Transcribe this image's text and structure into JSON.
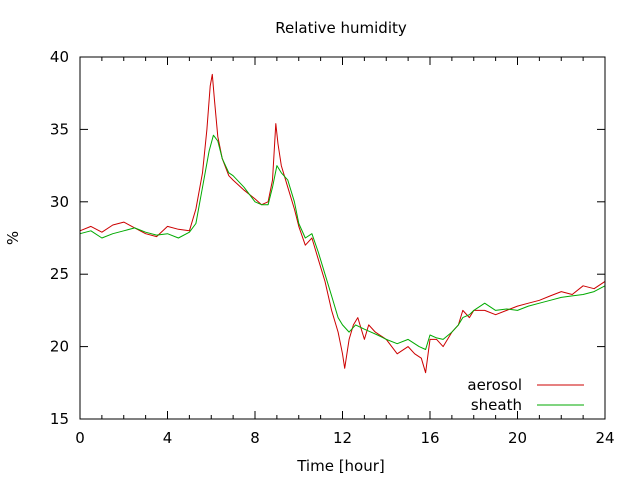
{
  "chart_data": {
    "type": "line",
    "title": "Relative humidity",
    "xlabel": "Time [hour]",
    "ylabel": "%",
    "xlim": [
      0,
      24
    ],
    "ylim": [
      15,
      40
    ],
    "xticks": [
      0,
      4,
      8,
      12,
      16,
      20,
      24
    ],
    "yticks": [
      15,
      20,
      25,
      30,
      35,
      40
    ],
    "xtick_labels": [
      "0",
      "4",
      "8",
      "12",
      "16",
      "20",
      "24"
    ],
    "ytick_labels": [
      "15",
      "20",
      "25",
      "30",
      "35",
      "40"
    ],
    "grid": false,
    "legend_position": "bottom-right",
    "series": [
      {
        "name": "aerosol",
        "color": "#cc0000",
        "x": [
          0,
          0.5,
          1,
          1.5,
          2,
          2.5,
          3,
          3.5,
          4,
          4.5,
          5,
          5.3,
          5.6,
          5.8,
          5.95,
          6.05,
          6.15,
          6.3,
          6.5,
          6.8,
          7,
          7.5,
          8,
          8.3,
          8.6,
          8.8,
          8.95,
          9.05,
          9.2,
          9.5,
          9.8,
          10,
          10.3,
          10.6,
          10.9,
          11.2,
          11.5,
          11.8,
          12,
          12.1,
          12.3,
          12.5,
          12.7,
          12.8,
          13,
          13.2,
          13.5,
          14,
          14.5,
          15,
          15.3,
          15.6,
          15.8,
          16,
          16.3,
          16.6,
          17,
          17.3,
          17.5,
          17.8,
          18,
          18.5,
          19,
          19.5,
          20,
          20.5,
          21,
          21.5,
          22,
          22.5,
          23,
          23.5,
          24
        ],
        "y": [
          28.0,
          28.3,
          27.9,
          28.4,
          28.6,
          28.2,
          27.8,
          27.6,
          28.3,
          28.1,
          28.0,
          29.5,
          32.0,
          35.0,
          38.0,
          38.8,
          37.0,
          34.5,
          33.0,
          31.8,
          31.5,
          30.8,
          30.2,
          29.8,
          30.0,
          31.5,
          35.4,
          34.0,
          32.5,
          31.0,
          29.5,
          28.3,
          27.0,
          27.5,
          26.0,
          24.5,
          22.5,
          21.0,
          19.5,
          18.5,
          20.5,
          21.5,
          22.0,
          21.5,
          20.5,
          21.5,
          21.0,
          20.5,
          19.5,
          20.0,
          19.5,
          19.2,
          18.2,
          20.5,
          20.5,
          20.0,
          21.0,
          21.5,
          22.5,
          22.0,
          22.5,
          22.5,
          22.2,
          22.5,
          22.8,
          23.0,
          23.2,
          23.5,
          23.8,
          23.6,
          24.2,
          24.0,
          24.5
        ]
      },
      {
        "name": "sheath",
        "color": "#00aa00",
        "x": [
          0,
          0.5,
          1,
          1.5,
          2,
          2.5,
          3,
          3.5,
          4,
          4.5,
          5,
          5.3,
          5.6,
          5.9,
          6.1,
          6.3,
          6.5,
          6.8,
          7,
          7.5,
          8,
          8.3,
          8.6,
          8.8,
          9.0,
          9.2,
          9.5,
          9.8,
          10,
          10.3,
          10.6,
          10.9,
          11.2,
          11.5,
          11.8,
          12,
          12.3,
          12.6,
          13,
          13.3,
          13.6,
          14,
          14.5,
          15,
          15.5,
          15.8,
          16,
          16.3,
          16.6,
          17,
          17.3,
          17.5,
          17.8,
          18,
          18.5,
          19,
          19.5,
          20,
          20.5,
          21,
          21.5,
          22,
          22.5,
          23,
          23.5,
          24
        ],
        "y": [
          27.8,
          28.0,
          27.5,
          27.8,
          28.0,
          28.2,
          27.9,
          27.7,
          27.8,
          27.5,
          27.9,
          28.5,
          31.0,
          33.5,
          34.6,
          34.2,
          33.0,
          32.0,
          31.8,
          31.0,
          30.0,
          29.8,
          29.8,
          31.0,
          32.5,
          32.0,
          31.5,
          30.0,
          28.5,
          27.5,
          27.8,
          26.5,
          25.0,
          23.5,
          22.0,
          21.5,
          21.0,
          21.5,
          21.2,
          21.0,
          20.8,
          20.5,
          20.2,
          20.5,
          20.0,
          19.8,
          20.8,
          20.6,
          20.5,
          21.0,
          21.5,
          22.0,
          22.2,
          22.5,
          23.0,
          22.5,
          22.6,
          22.5,
          22.8,
          23.0,
          23.2,
          23.4,
          23.5,
          23.6,
          23.8,
          24.2
        ]
      }
    ]
  }
}
